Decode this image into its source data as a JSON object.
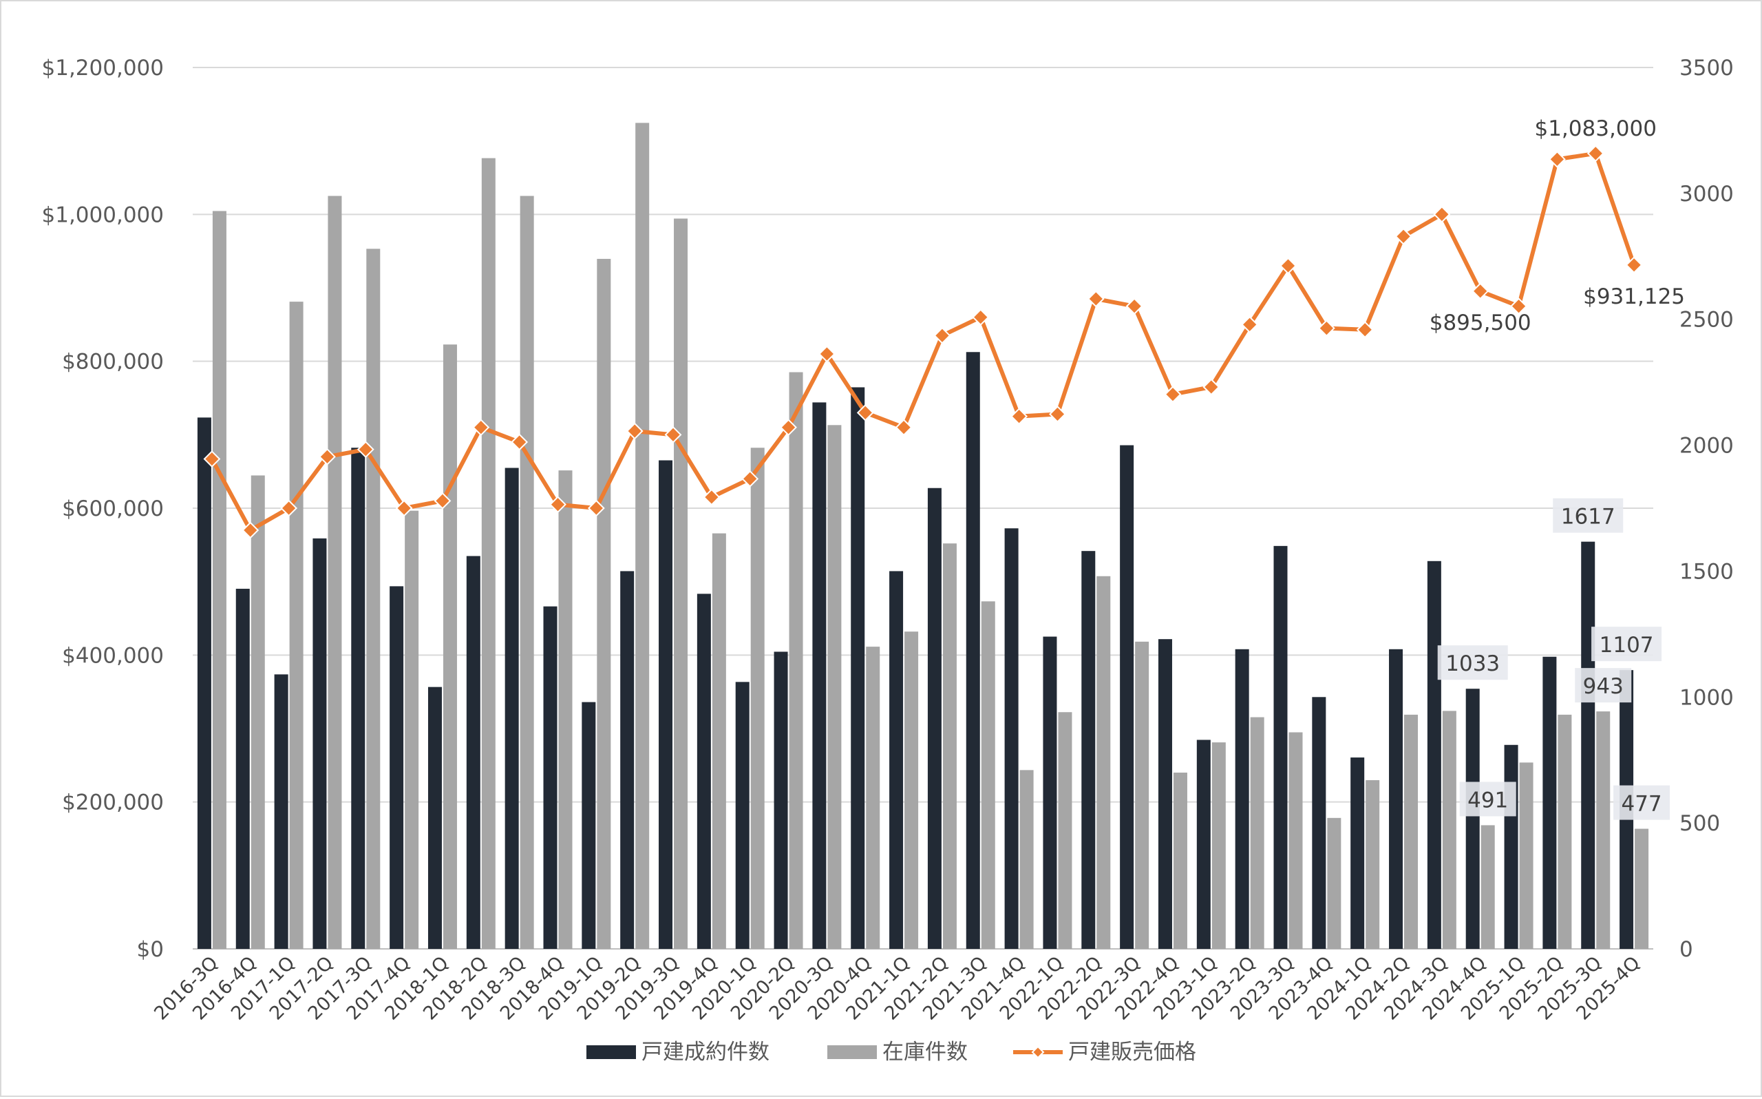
{
  "chart_data": {
    "type": "bar",
    "categories": [
      "2016-3Q",
      "2016-4Q",
      "2017-1Q",
      "2017-2Q",
      "2017-3Q",
      "2017-4Q",
      "2018-1Q",
      "2018-2Q",
      "2018-3Q",
      "2018-4Q",
      "2019-1Q",
      "2019-2Q",
      "2019-3Q",
      "2019-4Q",
      "2020-1Q",
      "2020-2Q",
      "2020-3Q",
      "2020-4Q",
      "2021-1Q",
      "2021-2Q",
      "2021-3Q",
      "2021-4Q",
      "2022-1Q",
      "2022-2Q",
      "2022-3Q",
      "2022-4Q",
      "2023-1Q",
      "2023-2Q",
      "2023-3Q",
      "2023-4Q",
      "2024-1Q",
      "2024-2Q",
      "2024-3Q",
      "2024-4Q",
      "2025-1Q",
      "2025-2Q",
      "2025-3Q",
      "2025-4Q"
    ],
    "series": [
      {
        "name": "戸建成約件数",
        "kind": "bar",
        "axis": "right",
        "color": "#222a35",
        "values": [
          2110,
          1430,
          1090,
          1630,
          1990,
          1440,
          1040,
          1560,
          1910,
          1360,
          980,
          1500,
          1940,
          1410,
          1060,
          1180,
          2170,
          2230,
          1500,
          1830,
          2370,
          1670,
          1240,
          1580,
          2000,
          1230,
          830,
          1190,
          1600,
          1000,
          760,
          1190,
          1540,
          1033,
          810,
          1160,
          1617,
          1107
        ]
      },
      {
        "name": "在庫件数",
        "kind": "bar",
        "axis": "right",
        "color": "#a6a6a6",
        "values": [
          2930,
          1880,
          2570,
          2990,
          2780,
          1740,
          2400,
          3140,
          2990,
          1900,
          2740,
          3280,
          2900,
          1650,
          1990,
          2290,
          2080,
          1200,
          1260,
          1610,
          1380,
          710,
          940,
          1480,
          1220,
          700,
          820,
          920,
          860,
          520,
          670,
          930,
          945,
          491,
          740,
          930,
          943,
          477
        ]
      },
      {
        "name": "戸建販売価格",
        "kind": "line",
        "axis": "left",
        "color": "#ed7d31",
        "values": [
          667000,
          570000,
          600000,
          670000,
          680000,
          600000,
          610000,
          710000,
          690000,
          605000,
          600000,
          705000,
          700000,
          615000,
          640000,
          710000,
          810000,
          730000,
          710000,
          835000,
          860000,
          725000,
          728000,
          885000,
          875000,
          755000,
          765000,
          850000,
          930000,
          845000,
          843000,
          970000,
          1000000,
          895500,
          875000,
          1075000,
          1083000,
          931125
        ]
      }
    ],
    "y_left": {
      "min": 0,
      "max": 1200000,
      "ticks": [
        0,
        200000,
        400000,
        600000,
        800000,
        1000000,
        1200000
      ],
      "tick_labels": [
        "$0",
        "$200,000",
        "$400,000",
        "$600,000",
        "$800,000",
        "$1,000,000",
        "$1,200,000"
      ]
    },
    "y_right": {
      "min": 0,
      "max": 3500,
      "ticks": [
        0,
        500,
        1000,
        1500,
        2000,
        2500,
        3000,
        3500
      ],
      "tick_labels": [
        "0",
        "500",
        "1000",
        "1500",
        "2000",
        "2500",
        "3000",
        "3500"
      ]
    },
    "grid": "horizontal",
    "legend_position": "bottom",
    "legend": [
      "戸建成約件数",
      "在庫件数",
      "戸建販売価格"
    ],
    "annotations": [
      {
        "text": "$1,083,000",
        "series": 2,
        "index": 36,
        "style": "plain",
        "pos": "above"
      },
      {
        "text": "$895,500",
        "series": 2,
        "index": 33,
        "style": "plain",
        "pos": "below"
      },
      {
        "text": "$931,125",
        "series": 2,
        "index": 37,
        "style": "plain",
        "pos": "below"
      },
      {
        "text": "1617",
        "series": 0,
        "index": 36,
        "style": "box",
        "pos": "above"
      },
      {
        "text": "1033",
        "series": 0,
        "index": 33,
        "style": "box",
        "pos": "above"
      },
      {
        "text": "1107",
        "series": 0,
        "index": 37,
        "style": "box",
        "pos": "above"
      },
      {
        "text": "943",
        "series": 1,
        "index": 36,
        "style": "box",
        "pos": "above"
      },
      {
        "text": "491",
        "series": 1,
        "index": 33,
        "style": "box",
        "pos": "above"
      },
      {
        "text": "477",
        "series": 1,
        "index": 37,
        "style": "box",
        "pos": "above"
      }
    ]
  }
}
